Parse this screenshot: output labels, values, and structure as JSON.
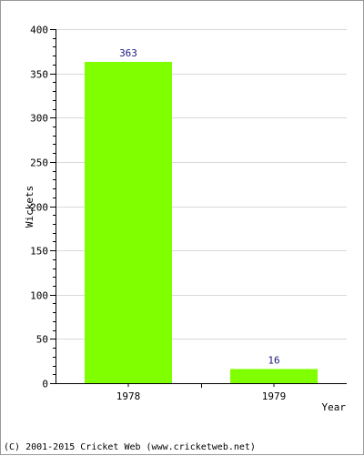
{
  "chart_data": {
    "type": "bar",
    "categories": [
      "1978",
      "1979"
    ],
    "values": [
      363,
      16
    ],
    "data_labels": [
      "363",
      "16"
    ],
    "xlabel": "Year",
    "ylabel": "Wickets",
    "ylim": [
      0,
      400
    ],
    "y_major_ticks": [
      0,
      50,
      100,
      150,
      200,
      250,
      300,
      350,
      400
    ],
    "y_minor_step": 10,
    "grid": true,
    "bar_color": "#80ff00",
    "gridline_color": "#d9d9d9"
  },
  "footer": {
    "copyright": "(C) 2001-2015 Cricket Web (www.cricketweb.net)"
  }
}
